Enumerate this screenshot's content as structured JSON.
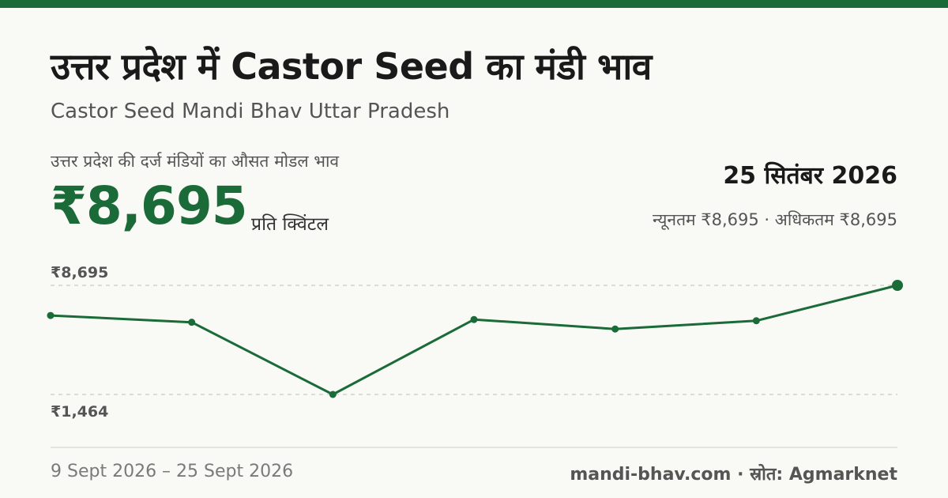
{
  "header": {
    "title": "उत्तर प्रदेश में Castor Seed का मंडी भाव",
    "subtitle": "Castor Seed Mandi Bhav Uttar Pradesh"
  },
  "summary": {
    "caption": "उत्तर प्रदेश की दर्ज मंडियों का औसत मोडल भाव",
    "price": "₹8,695",
    "unit": "प्रति क्विंटल",
    "date": "25 सितंबर 2026",
    "minmax": "न्यूनतम ₹8,695 · अधिकतम ₹8,695"
  },
  "footer": {
    "range": "9 Sept 2026 – 25 Sept 2026",
    "site_source": "mandi-bhav.com · स्रोत: Agmarknet"
  },
  "colors": {
    "accent": "#1a6b37",
    "grid": "#bdbdb8",
    "background": "#f9f9f6"
  },
  "chart_data": {
    "type": "line",
    "title": "",
    "xlabel": "",
    "ylabel": "",
    "grid": true,
    "x": [
      "9 Sept 2026",
      "",
      "",
      "",
      "",
      "",
      "25 Sept 2026"
    ],
    "series": [
      {
        "values": [
          6700,
          6250,
          1464,
          6430,
          5800,
          6350,
          8695
        ]
      }
    ],
    "ylim": [
      1464,
      8695
    ],
    "tick_labels": [
      "₹8,695",
      "₹1,464"
    ]
  }
}
